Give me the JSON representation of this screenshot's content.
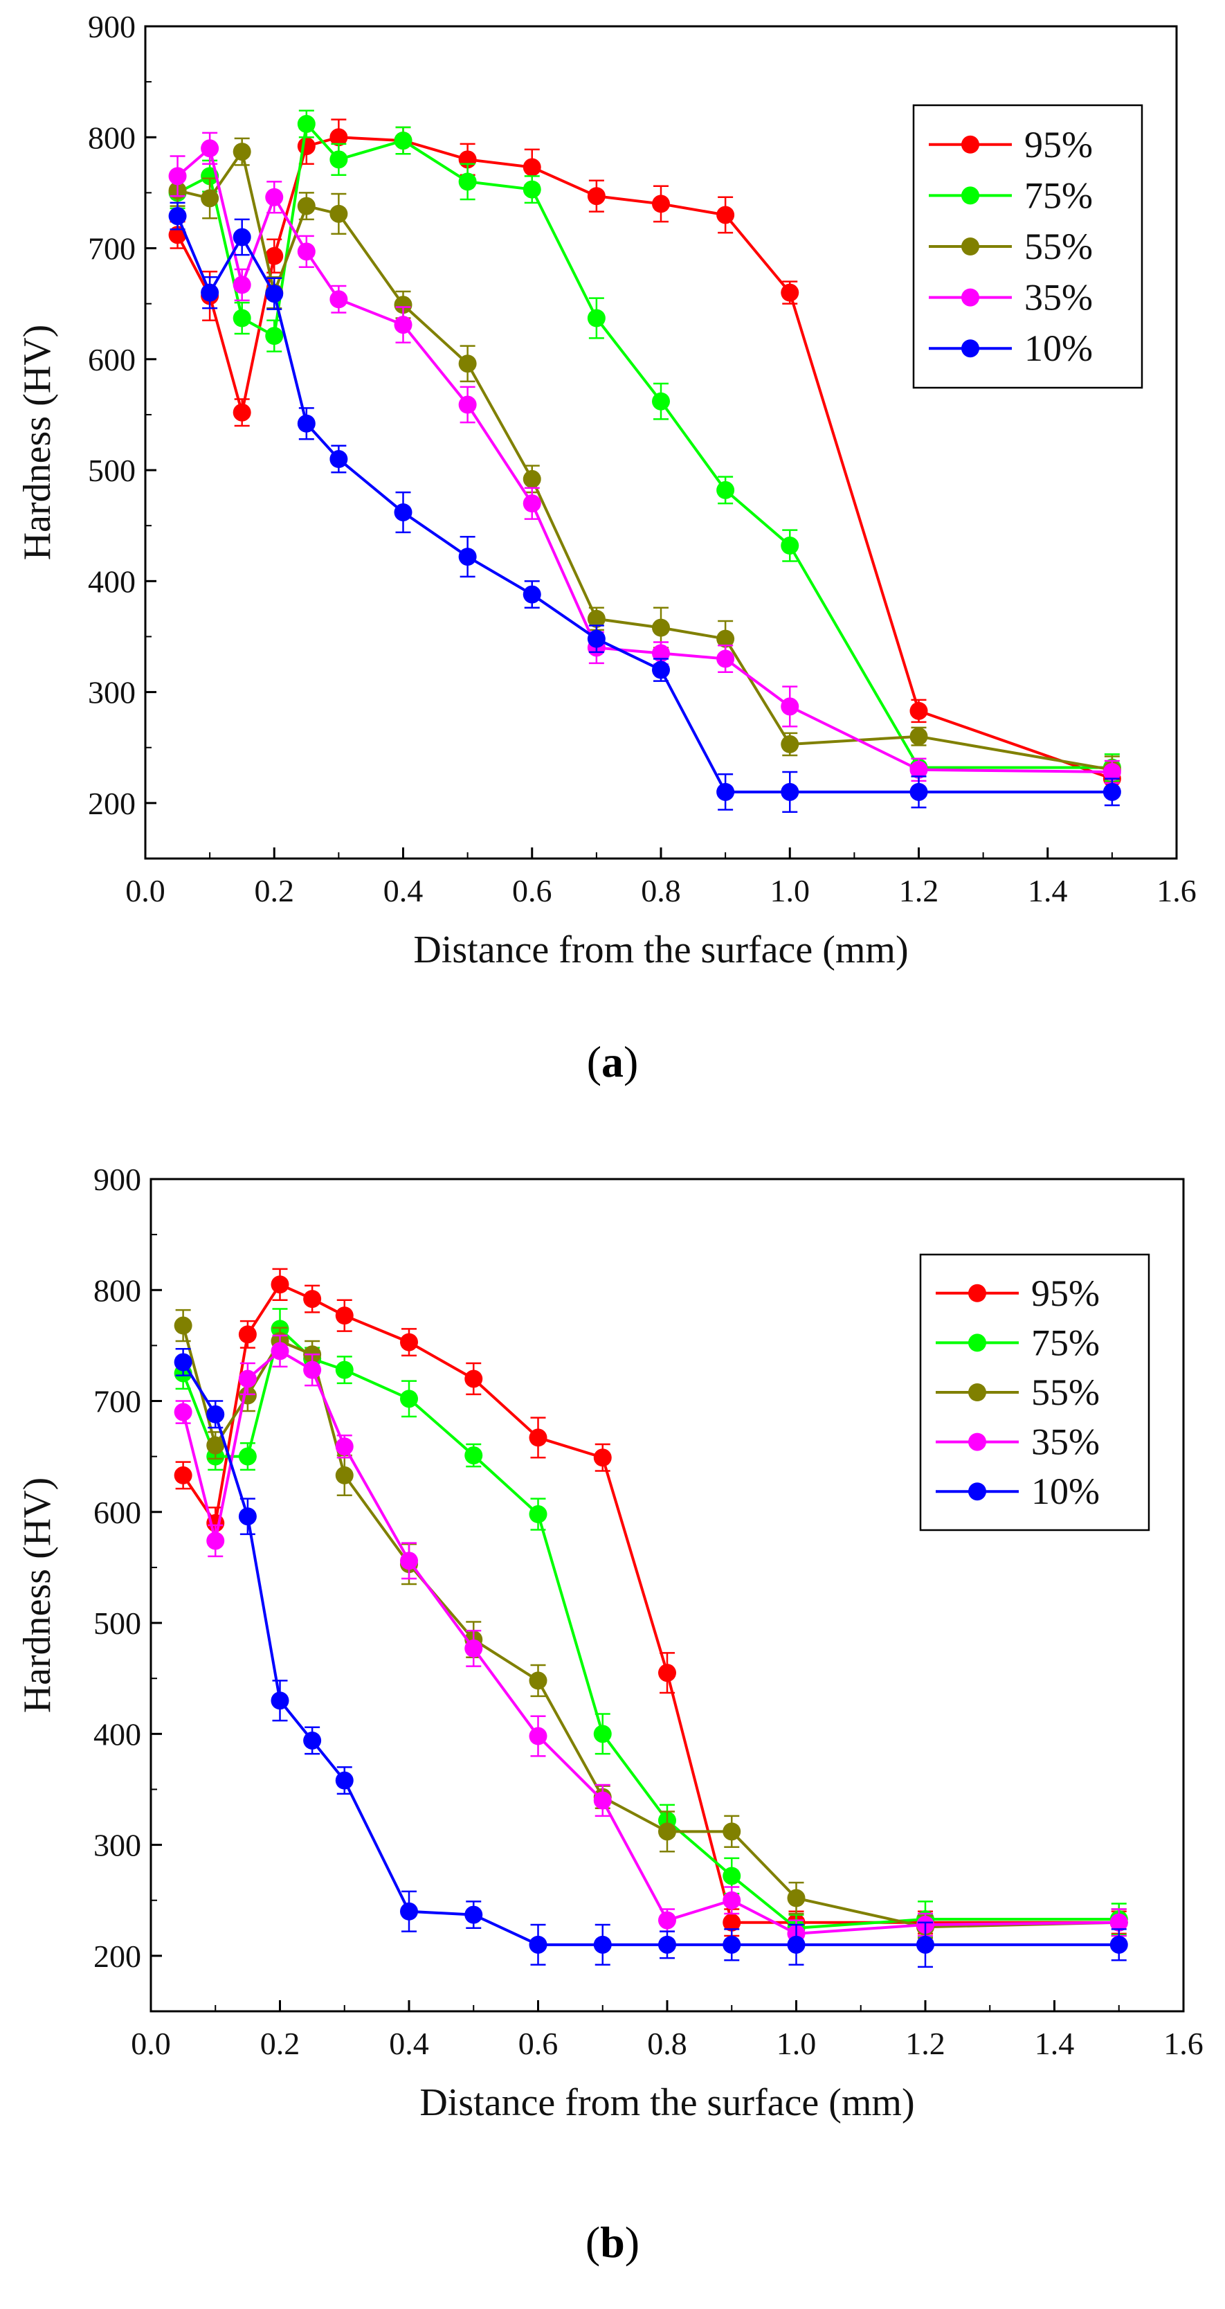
{
  "chart_data": [
    {
      "type": "line",
      "panel_label": "(a)",
      "panel_letter": "a",
      "xlabel": "Distance from the surface (mm)",
      "ylabel": "Hardness (HV)",
      "xlim": [
        0.0,
        1.6
      ],
      "ylim": [
        150,
        900
      ],
      "xticks": [
        0.0,
        0.2,
        0.4,
        0.6,
        0.8,
        1.0,
        1.2,
        1.4,
        1.6
      ],
      "xtick_labels": [
        "0.0",
        "0.2",
        "0.4",
        "0.6",
        "0.8",
        "1.0",
        "1.2",
        "1.4",
        "1.6"
      ],
      "yticks": [
        200,
        300,
        400,
        500,
        600,
        700,
        800,
        900
      ],
      "ytick_labels": [
        "200",
        "300",
        "400",
        "500",
        "600",
        "700",
        "800",
        "900"
      ],
      "legend_position": "top-right",
      "series": [
        {
          "name": "95%",
          "color": "#ff0000",
          "x": [
            0.05,
            0.1,
            0.15,
            0.2,
            0.25,
            0.3,
            0.4,
            0.5,
            0.6,
            0.7,
            0.8,
            0.9,
            1.0,
            1.2,
            1.5
          ],
          "y": [
            712,
            657,
            552,
            693,
            792,
            800,
            797,
            780,
            773,
            747,
            740,
            730,
            660,
            283,
            222
          ],
          "err": [
            12,
            22,
            12,
            15,
            16,
            16,
            12,
            14,
            16,
            14,
            16,
            16,
            10,
            10,
            10
          ]
        },
        {
          "name": "75%",
          "color": "#00ff00",
          "x": [
            0.05,
            0.1,
            0.15,
            0.2,
            0.25,
            0.3,
            0.4,
            0.5,
            0.6,
            0.7,
            0.8,
            0.9,
            1.0,
            1.2,
            1.5
          ],
          "y": [
            750,
            765,
            637,
            621,
            812,
            780,
            797,
            760,
            753,
            637,
            562,
            482,
            432,
            232,
            232
          ],
          "err": [
            14,
            14,
            14,
            14,
            12,
            14,
            12,
            16,
            12,
            18,
            16,
            12,
            14,
            8,
            12
          ]
        },
        {
          "name": "55%",
          "color": "#808000",
          "x": [
            0.05,
            0.1,
            0.15,
            0.2,
            0.25,
            0.3,
            0.4,
            0.5,
            0.6,
            0.7,
            0.8,
            0.9,
            1.0,
            1.2,
            1.5
          ],
          "y": [
            752,
            745,
            787,
            660,
            738,
            731,
            649,
            596,
            492,
            366,
            358,
            348,
            253,
            260,
            230
          ],
          "err": [
            14,
            18,
            12,
            14,
            12,
            18,
            12,
            16,
            12,
            10,
            18,
            16,
            10,
            8,
            12
          ]
        },
        {
          "name": "35%",
          "color": "#ff00ff",
          "x": [
            0.05,
            0.1,
            0.15,
            0.2,
            0.25,
            0.3,
            0.4,
            0.5,
            0.6,
            0.7,
            0.8,
            0.9,
            1.0,
            1.2,
            1.5
          ],
          "y": [
            765,
            790,
            667,
            746,
            697,
            654,
            631,
            559,
            470,
            340,
            335,
            330,
            287,
            230,
            228
          ],
          "err": [
            18,
            14,
            14,
            14,
            14,
            12,
            16,
            16,
            14,
            14,
            10,
            12,
            18,
            10,
            10
          ]
        },
        {
          "name": "10%",
          "color": "#0000ff",
          "x": [
            0.05,
            0.1,
            0.15,
            0.2,
            0.25,
            0.3,
            0.4,
            0.5,
            0.6,
            0.7,
            0.8,
            0.9,
            1.0,
            1.2,
            1.5
          ],
          "y": [
            729,
            660,
            710,
            659,
            542,
            510,
            462,
            422,
            388,
            348,
            320,
            210,
            210,
            210,
            210
          ],
          "err": [
            12,
            14,
            16,
            14,
            14,
            12,
            18,
            18,
            12,
            12,
            10,
            16,
            18,
            14,
            12
          ]
        }
      ]
    },
    {
      "type": "line",
      "panel_label": "(b)",
      "panel_letter": "b",
      "xlabel": "Distance from the surface (mm)",
      "ylabel": "Hardness (HV)",
      "xlim": [
        0.0,
        1.6
      ],
      "ylim": [
        150,
        900
      ],
      "xticks": [
        0.0,
        0.2,
        0.4,
        0.6,
        0.8,
        1.0,
        1.2,
        1.4,
        1.6
      ],
      "xtick_labels": [
        "0.0",
        "0.2",
        "0.4",
        "0.6",
        "0.8",
        "1.0",
        "1.2",
        "1.4",
        "1.6"
      ],
      "yticks": [
        200,
        300,
        400,
        500,
        600,
        700,
        800,
        900
      ],
      "ytick_labels": [
        "200",
        "300",
        "400",
        "500",
        "600",
        "700",
        "800",
        "900"
      ],
      "legend_position": "top-right",
      "series": [
        {
          "name": "95%",
          "color": "#ff0000",
          "x": [
            0.05,
            0.1,
            0.15,
            0.2,
            0.25,
            0.3,
            0.4,
            0.5,
            0.6,
            0.7,
            0.8,
            0.9,
            1.0,
            1.2,
            1.5
          ],
          "y": [
            633,
            590,
            760,
            805,
            792,
            777,
            753,
            720,
            667,
            649,
            455,
            230,
            230,
            230,
            230
          ],
          "err": [
            12,
            14,
            12,
            14,
            12,
            14,
            12,
            14,
            18,
            12,
            18,
            12,
            10,
            10,
            10
          ]
        },
        {
          "name": "75%",
          "color": "#00ff00",
          "x": [
            0.05,
            0.1,
            0.15,
            0.2,
            0.25,
            0.3,
            0.4,
            0.5,
            0.6,
            0.7,
            0.8,
            0.9,
            1.0,
            1.2,
            1.5
          ],
          "y": [
            725,
            650,
            650,
            765,
            738,
            728,
            702,
            651,
            598,
            400,
            322,
            272,
            225,
            233,
            233
          ],
          "err": [
            14,
            12,
            12,
            18,
            10,
            12,
            16,
            10,
            14,
            18,
            14,
            16,
            12,
            16,
            14
          ]
        },
        {
          "name": "55%",
          "color": "#808000",
          "x": [
            0.05,
            0.1,
            0.15,
            0.2,
            0.25,
            0.3,
            0.4,
            0.5,
            0.6,
            0.7,
            0.8,
            0.9,
            1.0,
            1.2,
            1.5
          ],
          "y": [
            768,
            660,
            705,
            754,
            742,
            633,
            553,
            485,
            448,
            343,
            312,
            312,
            252,
            226,
            230
          ],
          "err": [
            14,
            12,
            14,
            12,
            12,
            18,
            18,
            16,
            14,
            10,
            18,
            14,
            14,
            10,
            12
          ]
        },
        {
          "name": "35%",
          "color": "#ff00ff",
          "x": [
            0.05,
            0.1,
            0.15,
            0.2,
            0.25,
            0.3,
            0.4,
            0.5,
            0.6,
            0.7,
            0.8,
            0.9,
            1.0,
            1.2,
            1.5
          ],
          "y": [
            690,
            574,
            720,
            745,
            728,
            659,
            556,
            477,
            398,
            340,
            232,
            250,
            220,
            228,
            230
          ],
          "err": [
            10,
            14,
            14,
            14,
            14,
            10,
            16,
            16,
            18,
            14,
            10,
            12,
            12,
            10,
            12
          ]
        },
        {
          "name": "10%",
          "color": "#0000ff",
          "x": [
            0.05,
            0.1,
            0.15,
            0.2,
            0.25,
            0.3,
            0.4,
            0.5,
            0.6,
            0.7,
            0.8,
            0.9,
            1.0,
            1.2,
            1.5
          ],
          "y": [
            735,
            688,
            596,
            430,
            394,
            358,
            240,
            237,
            210,
            210,
            210,
            210,
            210,
            210,
            210
          ],
          "err": [
            12,
            12,
            16,
            18,
            12,
            12,
            18,
            12,
            18,
            18,
            12,
            14,
            18,
            20,
            14
          ]
        }
      ]
    }
  ]
}
